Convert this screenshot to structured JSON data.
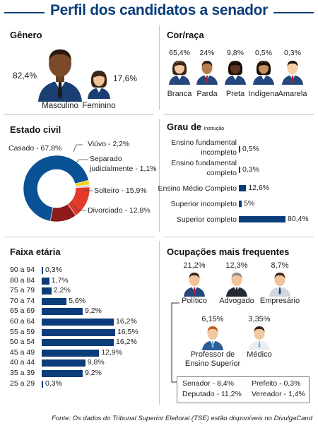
{
  "title": "Perfil dos candidatos a senador",
  "colors": {
    "brand": "#0a3d7a",
    "bar": "#0a3d7a",
    "donut_main": "#0a5296",
    "donut_yellow": "#f2d21a",
    "donut_red": "#e23a2b",
    "donut_darkred": "#8e1b1b",
    "rule": "#c8c8c8"
  },
  "genero": {
    "title": "Gênero",
    "items": [
      {
        "label": "Masculino",
        "value": "82,4%",
        "icon": "man-icon"
      },
      {
        "label": "Feminino",
        "value": "17,6%",
        "icon": "woman-icon"
      }
    ]
  },
  "cor_raca": {
    "title": "Cor/raça",
    "items": [
      {
        "label": "Branca",
        "value": "65,4%",
        "icon": "woman-icon"
      },
      {
        "label": "Parda",
        "value": "24%",
        "icon": "man-icon"
      },
      {
        "label": "Preta",
        "value": "9,8%",
        "icon": "woman-icon"
      },
      {
        "label": "Indígena",
        "value": "0,5%",
        "icon": "woman-icon"
      },
      {
        "label": "Amarela",
        "value": "0,3%",
        "icon": "man-icon"
      }
    ]
  },
  "estado_civil": {
    "title": "Estado civil",
    "labels": {
      "casado": "Casado - 67,8%",
      "viuvo": "Viúvo - 2,2%",
      "separado_1": "Separado",
      "separado_2": "judicialmente - 1,1%",
      "solteiro": "Solteiro - 15,9%",
      "divorciado": "Divorciado - 12,8%"
    }
  },
  "grau": {
    "title": "Grau de",
    "title_small": "instrução"
  },
  "faixa": {
    "title": "Faixa etária"
  },
  "ocupacoes": {
    "title": "Ocupações mais frequentes",
    "items": [
      {
        "label": "Político",
        "value": "21,2%",
        "icon": "politician-icon"
      },
      {
        "label": "Advogado",
        "value": "12,3%",
        "icon": "lawyer-icon"
      },
      {
        "label": "Empresário",
        "value": "8,7%",
        "icon": "businessman-icon"
      },
      {
        "label": "Professor de",
        "label2": "Ensino Superior",
        "value": "6,15%",
        "icon": "teacher-icon"
      },
      {
        "label": "Médico",
        "value": "3,35%",
        "icon": "doctor-icon"
      }
    ],
    "detail": {
      "senador": "Senador - 8,4%",
      "prefeito": "Prefeito - 0,3%",
      "deputado": "Deputado - 11,2%",
      "vereador": "Vereador - 1,4%"
    }
  },
  "footer": "Fonte: Os dados do Tribunal Superior Eleitoral (TSE) estão disponíveis no DivulgaCand",
  "chart_data": [
    {
      "type": "pie",
      "categories": [
        "Casado",
        "Viúvo",
        "Separado judicialmente",
        "Solteiro",
        "Divorciado"
      ],
      "values": [
        67.8,
        2.2,
        1.1,
        15.9,
        12.8
      ]
    },
    {
      "type": "bar",
      "categories": [
        "Ensino fundamental incompleto",
        "Ensino fundamental completo",
        "Ensino Médio Completo",
        "Superior incompleto",
        "Superior completo"
      ],
      "values": [
        0.5,
        0.3,
        12.6,
        5,
        80.4
      ],
      "value_labels": [
        "0,5%",
        "0,3%",
        "12,6%",
        "5%",
        "80,4%"
      ],
      "category_lines": [
        [
          "Ensino fundamental",
          "incompleto"
        ],
        [
          "Ensino fundamental",
          "completo"
        ],
        [
          "Ensino Médio Completo"
        ],
        [
          "Superior incompleto"
        ],
        [
          "Superior completo"
        ]
      ]
    },
    {
      "type": "bar",
      "categories": [
        "90 a 94",
        "80 a 84",
        "75 a 79",
        "70 a 74",
        "65 a 69",
        "60 a 64",
        "55 a 59",
        "50 a 54",
        "45 a 49",
        "40 a 44",
        "35 a 39",
        "25 a 29"
      ],
      "values": [
        0.3,
        1.7,
        2.2,
        5.6,
        9.2,
        16.2,
        16.5,
        16.2,
        12.9,
        9.8,
        9.2,
        0.3
      ],
      "value_labels": [
        "0,3%",
        "1,7%",
        "2,2%",
        "5,6%",
        "9,2%",
        "16,2%",
        "16,5%",
        "16,2%",
        "12,9%",
        "9,8%",
        "9,2%",
        "0,3%"
      ]
    }
  ]
}
